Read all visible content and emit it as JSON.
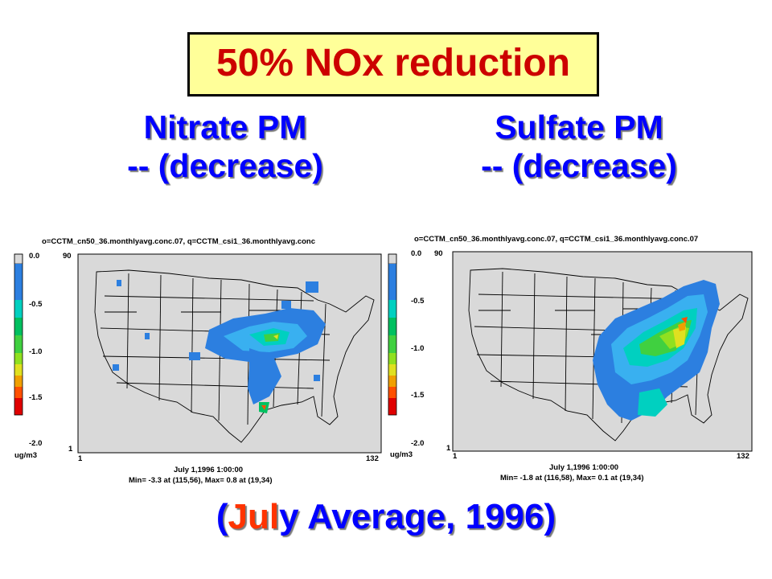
{
  "title": "50% NOx reduction",
  "left_header": {
    "line1": "Nitrate PM",
    "line2": "-- (decrease)"
  },
  "right_header": {
    "line1": "Sulfate PM",
    "line2": "-- (decrease)"
  },
  "caption": {
    "open": "(",
    "highlight": "Jul",
    "rest": "y Average, 1996)"
  },
  "colorbar": {
    "unit": "ug/m3",
    "tick_labels": [
      "0.0",
      "-0.5",
      "-1.0",
      "-1.5",
      "-2.0"
    ],
    "colors": [
      "#d9d9d9",
      "#2c7fe0",
      "#39b0f0",
      "#00d0c0",
      "#00c060",
      "#40d040",
      "#90e020",
      "#e0e020",
      "#f0a000",
      "#ff5000",
      "#e00000"
    ]
  },
  "maps": [
    {
      "name": "nitrate",
      "header": "o=CCTM_cn50_36.monthlyavg.conc.07, q=CCTM_csi1_36.monthlyavg.conc",
      "y_max": "90",
      "y_min": "1",
      "x_min": "1",
      "x_max": "132",
      "date": "July 1,1996 1:00:00",
      "stats": "Min=    -3.3 at (115,56), Max=    0.8 at (19,34)"
    },
    {
      "name": "sulfate",
      "header": "o=CCTM_cn50_36.monthlyavg.conc.07, q=CCTM_csi1_36.monthlyavg.conc.07",
      "y_max": "90",
      "y_min": "1",
      "x_min": "1",
      "x_max": "132",
      "date": "July 1,1996 1:00:00",
      "stats": "Min=    -1.8 at (116,58), Max=    0.1 at (19,34)"
    }
  ]
}
